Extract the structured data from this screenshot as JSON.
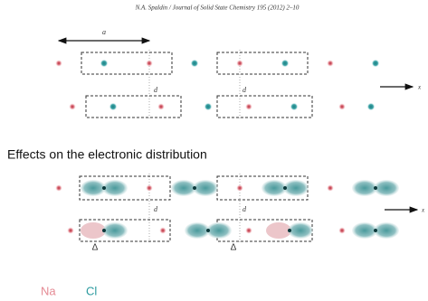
{
  "header": {
    "citation": "N.A. Spaldin / Journal of Solid State Chemistry 195 (2012) 2–10"
  },
  "top": {
    "a_label": "a",
    "x_label": "x",
    "d_labels": [
      "d",
      "d"
    ]
  },
  "heading": "Effects on the electronic distribution",
  "bottom": {
    "x_label": "x",
    "d_labels": [
      "d",
      "d"
    ],
    "delta_labels": [
      "Δ",
      "Δ"
    ]
  },
  "legend": {
    "na": "Na",
    "cl": "Cl"
  }
}
